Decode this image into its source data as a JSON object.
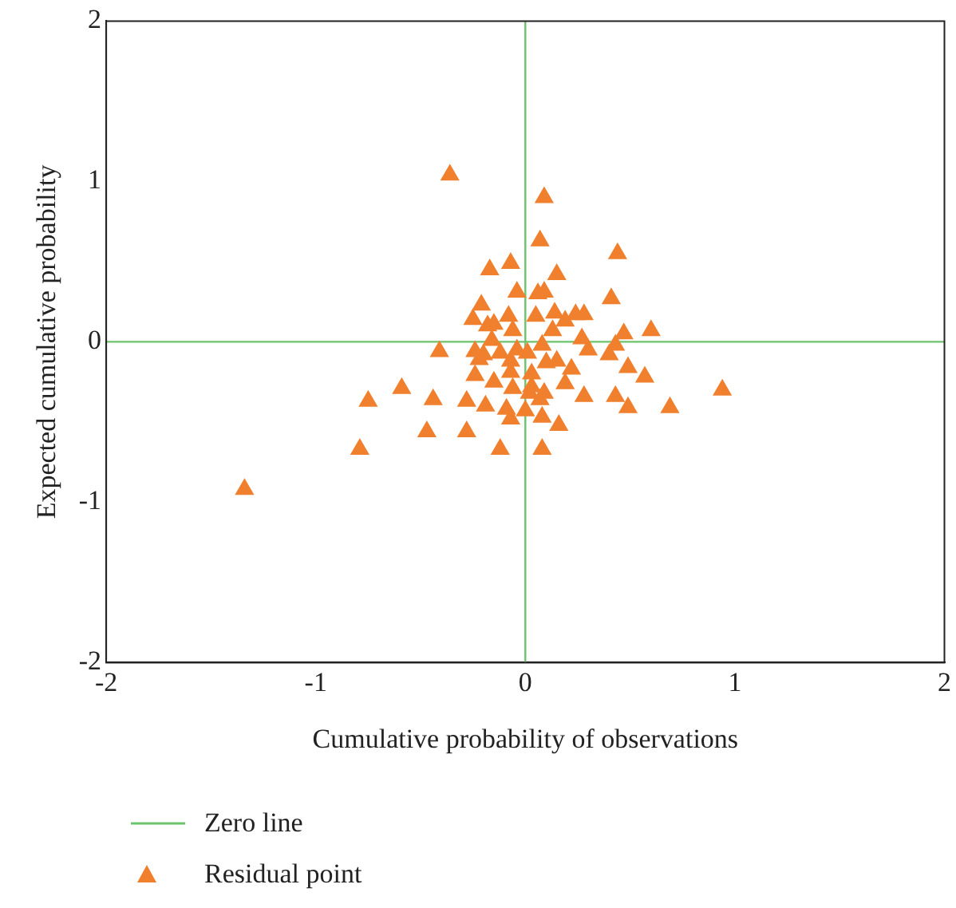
{
  "chart_data": {
    "type": "scatter",
    "xlabel": "Cumulative probability of observations",
    "ylabel": "Expected cumulative probability",
    "xlim": [
      -2,
      2
    ],
    "ylim": [
      -2,
      2
    ],
    "xticks": [
      -2,
      -1,
      0,
      1,
      2
    ],
    "yticks": [
      -2,
      -1,
      0,
      1,
      2
    ],
    "grid": false,
    "legend": "bottom left",
    "marker": "triangle",
    "ref_lines": [
      {
        "axis": "x",
        "value": 0,
        "color": "#6cc36c"
      },
      {
        "axis": "y",
        "value": 0,
        "label": "Zero line",
        "color": "#6cc36c"
      }
    ],
    "series": [
      {
        "name": "Residual point",
        "color": "#f0802e",
        "x": [
          -0.36,
          0.09,
          0.07,
          0.44,
          -0.07,
          -0.17,
          0.15,
          -0.04,
          0.06,
          0.09,
          0.41,
          -0.21,
          -0.25,
          -0.08,
          0.05,
          0.14,
          0.19,
          0.24,
          0.28,
          -0.18,
          -0.15,
          -0.06,
          0.13,
          0.47,
          0.6,
          -0.16,
          0.27,
          -0.41,
          -0.24,
          -0.2,
          -0.22,
          -0.12,
          -0.04,
          0.01,
          0.08,
          -0.07,
          0.1,
          0.15,
          0.3,
          0.4,
          0.43,
          0.22,
          0.49,
          0.57,
          -0.24,
          -0.07,
          0.03,
          -0.15,
          0.19,
          -0.06,
          0.03,
          0.02,
          0.09,
          0.07,
          0.94,
          -0.59,
          -0.75,
          -0.44,
          -0.28,
          -0.19,
          -0.09,
          0,
          0.28,
          0.43,
          0.49,
          0.69,
          -0.07,
          0.08,
          0.16,
          -0.47,
          -0.28,
          -0.79,
          -0.12,
          0.08,
          -1.34
        ],
        "values": [
          1.04,
          0.9,
          0.63,
          0.55,
          0.49,
          0.45,
          0.42,
          0.31,
          0.3,
          0.31,
          0.27,
          0.23,
          0.14,
          0.16,
          0.16,
          0.18,
          0.13,
          0.17,
          0.17,
          0.1,
          0.11,
          0.07,
          0.07,
          0.05,
          0.07,
          0.01,
          0.02,
          -0.06,
          -0.06,
          -0.08,
          -0.11,
          -0.07,
          -0.05,
          -0.07,
          -0.02,
          -0.12,
          -0.13,
          -0.12,
          -0.05,
          -0.08,
          -0.02,
          -0.17,
          -0.16,
          -0.22,
          -0.21,
          -0.19,
          -0.2,
          -0.25,
          -0.26,
          -0.29,
          -0.28,
          -0.32,
          -0.32,
          -0.36,
          -0.3,
          -0.29,
          -0.37,
          -0.36,
          -0.37,
          -0.4,
          -0.42,
          -0.43,
          -0.34,
          -0.34,
          -0.41,
          -0.41,
          -0.48,
          -0.47,
          -0.52,
          -0.56,
          -0.56,
          -0.67,
          -0.67,
          -0.67,
          -0.92
        ]
      }
    ]
  }
}
